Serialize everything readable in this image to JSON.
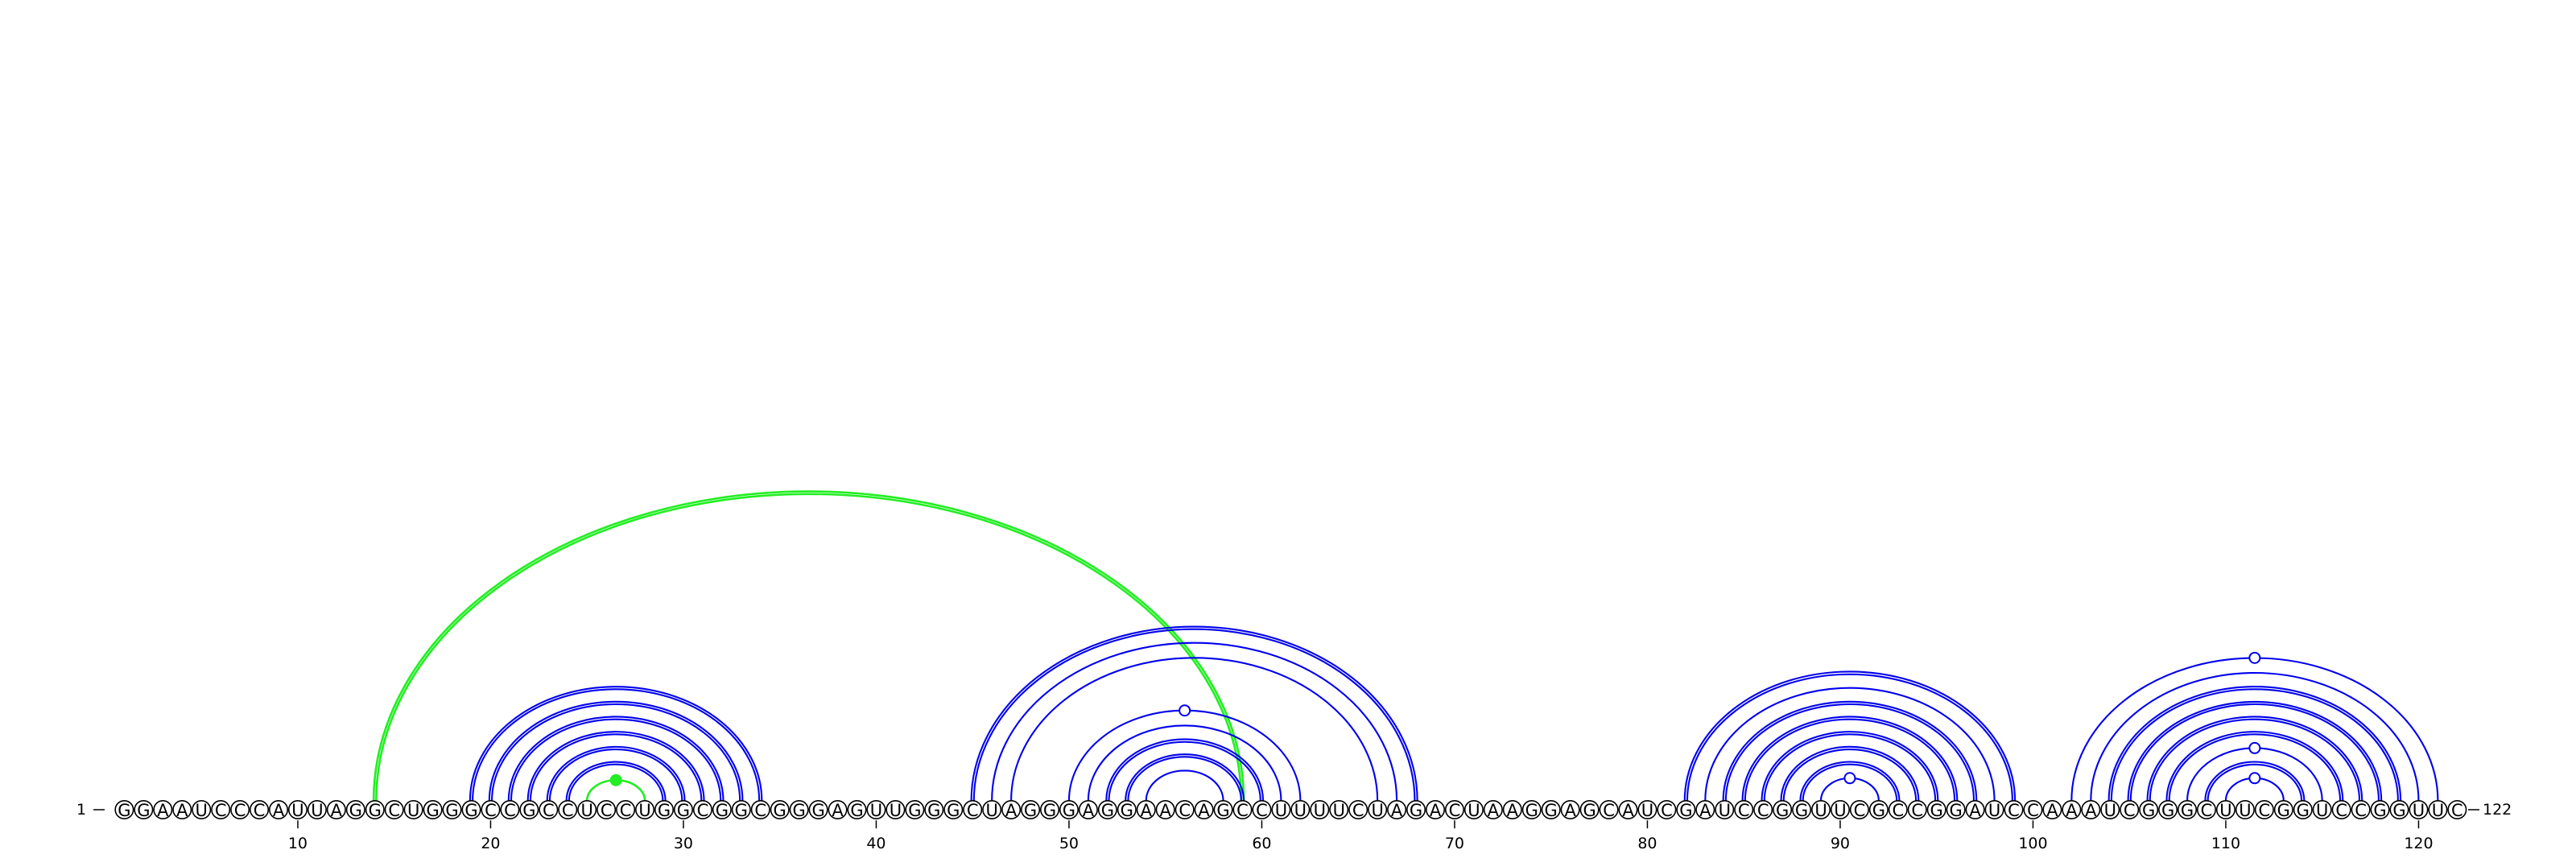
{
  "sequence": "GGAAUCCCAUUAGGCUGGGCCGCCUCCUGGCGGCGGGAGUUGGGCUAGGGAGGAACAGCCUUUUCUAGACUAAGGAGCAUCGAUCCGGUUCGCCGGAUCCAAAUCGGGCUUCGGUCCGGUUC",
  "start_label": "1",
  "end_label": "122",
  "tick_labels": [
    "10",
    "20",
    "30",
    "40",
    "50",
    "60",
    "70",
    "80",
    "90",
    "100",
    "110",
    "120"
  ],
  "tick_positions": [
    10,
    20,
    30,
    40,
    50,
    60,
    70,
    80,
    90,
    100,
    110,
    120
  ],
  "colors": {
    "stem_arcs": "#0000ee",
    "pseudoknot_arcs": "#22ee22",
    "nucleotide_stroke": "#000000"
  },
  "arcs": [
    {
      "i": 14,
      "j": 59,
      "color": "green",
      "double": true
    },
    {
      "i": 25,
      "j": 28,
      "color": "green",
      "double": false,
      "marker": "filled"
    },
    {
      "i": 19,
      "j": 34,
      "color": "blue",
      "double": true
    },
    {
      "i": 20,
      "j": 33,
      "color": "blue",
      "double": true
    },
    {
      "i": 21,
      "j": 32,
      "color": "blue",
      "double": true
    },
    {
      "i": 22,
      "j": 31,
      "color": "blue",
      "double": true
    },
    {
      "i": 23,
      "j": 30,
      "color": "blue",
      "double": true
    },
    {
      "i": 24,
      "j": 29,
      "color": "blue",
      "double": true
    },
    {
      "i": 45,
      "j": 68,
      "color": "blue",
      "double": true
    },
    {
      "i": 46,
      "j": 67,
      "color": "blue",
      "double": false
    },
    {
      "i": 47,
      "j": 66,
      "color": "blue",
      "double": false
    },
    {
      "i": 50,
      "j": 62,
      "color": "blue",
      "double": false,
      "marker": "open"
    },
    {
      "i": 51,
      "j": 61,
      "color": "blue",
      "double": false
    },
    {
      "i": 52,
      "j": 60,
      "color": "blue",
      "double": true
    },
    {
      "i": 53,
      "j": 59,
      "color": "blue",
      "double": true
    },
    {
      "i": 54,
      "j": 58,
      "color": "blue",
      "double": false
    },
    {
      "i": 82,
      "j": 99,
      "color": "blue",
      "double": true
    },
    {
      "i": 83,
      "j": 98,
      "color": "blue",
      "double": false
    },
    {
      "i": 84,
      "j": 97,
      "color": "blue",
      "double": true
    },
    {
      "i": 85,
      "j": 96,
      "color": "blue",
      "double": true
    },
    {
      "i": 86,
      "j": 95,
      "color": "blue",
      "double": true
    },
    {
      "i": 87,
      "j": 94,
      "color": "blue",
      "double": true
    },
    {
      "i": 88,
      "j": 93,
      "color": "blue",
      "double": true
    },
    {
      "i": 89,
      "j": 92,
      "color": "blue",
      "double": false,
      "marker": "open"
    },
    {
      "i": 102,
      "j": 121,
      "color": "blue",
      "double": false,
      "marker": "open"
    },
    {
      "i": 103,
      "j": 120,
      "color": "blue",
      "double": false
    },
    {
      "i": 104,
      "j": 119,
      "color": "blue",
      "double": true
    },
    {
      "i": 105,
      "j": 118,
      "color": "blue",
      "double": true
    },
    {
      "i": 106,
      "j": 117,
      "color": "blue",
      "double": true
    },
    {
      "i": 107,
      "j": 116,
      "color": "blue",
      "double": true
    },
    {
      "i": 108,
      "j": 115,
      "color": "blue",
      "double": false,
      "marker": "open"
    },
    {
      "i": 109,
      "j": 114,
      "color": "blue",
      "double": true
    },
    {
      "i": 110,
      "j": 113,
      "color": "blue",
      "double": false,
      "marker": "open"
    }
  ]
}
